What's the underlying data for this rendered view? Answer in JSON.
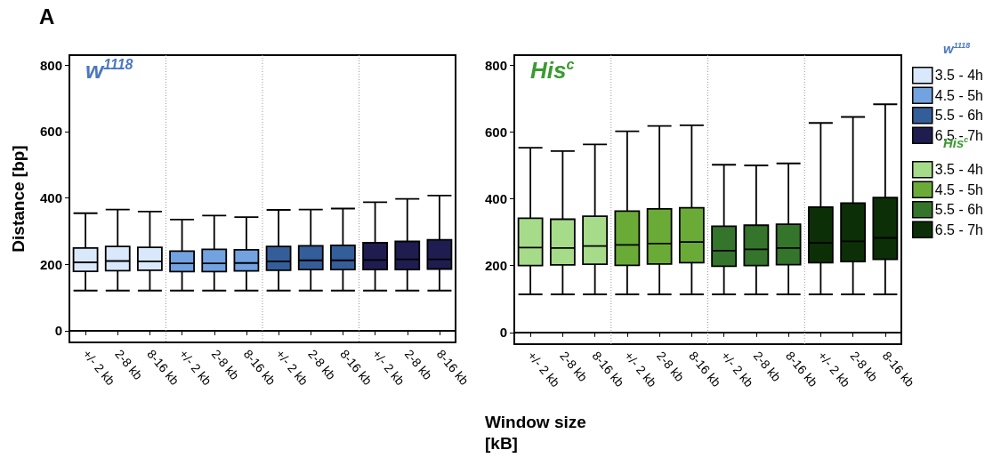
{
  "chart_data": [
    {
      "type": "box",
      "title": "w$^{1118}$",
      "legend_title": "w$^{1118}$",
      "ylabel": "Distance [bp]",
      "xlabel": "Window size\n[kB]",
      "annotations": [
        "A"
      ],
      "categories": [
        "+/- 2 kb",
        "2-8 kb",
        "8-16 kb",
        "+/- 2 kb",
        "2-8 kb",
        "8-16 kb",
        "+/- 2 kb",
        "2-8 kb",
        "8-16 kb",
        "+/- 2 kb",
        "2-8 kb",
        "8-16 kb"
      ],
      "ylim": [
        -35,
        830
      ],
      "yticks": [
        0,
        200,
        400,
        600,
        800
      ],
      "legend": "top right",
      "series": [
        {
          "name": "3.5 - 4h",
          "color": "#d9e8fb",
          "boxes": [
            {
              "low": 121,
              "q1": 179,
              "median": 206,
              "q3": 249,
              "high": 354
            },
            {
              "low": 121,
              "q1": 181,
              "median": 210,
              "q3": 254,
              "high": 365
            },
            {
              "low": 121,
              "q1": 182,
              "median": 209,
              "q3": 251,
              "high": 359
            },
            null,
            null,
            null,
            null,
            null,
            null,
            null,
            null,
            null
          ]
        },
        {
          "name": "4.5 - 5h",
          "color": "#72a2e0",
          "boxes": [
            null,
            null,
            null,
            {
              "low": 121,
              "q1": 178,
              "median": 203,
              "q3": 240,
              "high": 335
            },
            {
              "low": 121,
              "q1": 178,
              "median": 203,
              "q3": 245,
              "high": 347
            },
            {
              "low": 121,
              "q1": 180,
              "median": 204,
              "q3": 244,
              "high": 342
            },
            null,
            null,
            null,
            null,
            null,
            null
          ]
        },
        {
          "name": "5.5 - 6h",
          "color": "#345e99",
          "boxes": [
            null,
            null,
            null,
            null,
            null,
            null,
            {
              "low": 121,
              "q1": 182,
              "median": 209,
              "q3": 254,
              "high": 364
            },
            {
              "low": 121,
              "q1": 184,
              "median": 212,
              "q3": 256,
              "high": 365
            },
            {
              "low": 121,
              "q1": 184,
              "median": 212,
              "q3": 257,
              "high": 368
            },
            null,
            null,
            null
          ]
        },
        {
          "name": "6.5 - 7h",
          "color": "#1f1d4f",
          "boxes": [
            null,
            null,
            null,
            null,
            null,
            null,
            null,
            null,
            null,
            {
              "low": 121,
              "q1": 184,
              "median": 213,
              "q3": 265,
              "high": 387
            },
            {
              "low": 121,
              "q1": 184,
              "median": 215,
              "q3": 269,
              "high": 397
            },
            {
              "low": 121,
              "q1": 186,
              "median": 215,
              "q3": 274,
              "high": 407
            }
          ]
        }
      ]
    },
    {
      "type": "box",
      "title": "His$^{c}$",
      "legend_title": "His$^{c}$",
      "categories": [
        "+/- 2 kb",
        "2-8 kb",
        "8-16 kb",
        "+/- 2 kb",
        "2-8 kb",
        "8-16 kb",
        "+/- 2 kb",
        "2-8 kb",
        "8-16 kb",
        "+/- 2 kb",
        "2-8 kb",
        "8-16 kb"
      ],
      "ylim": [
        -35,
        830
      ],
      "yticks": [
        0,
        200,
        400,
        600,
        800
      ],
      "legend": "right",
      "series": [
        {
          "name": "3.5 - 4h",
          "color": "#a6db8a",
          "boxes": [
            {
              "low": 114,
              "q1": 200,
              "median": 254,
              "q3": 342,
              "high": 553
            },
            {
              "low": 114,
              "q1": 202,
              "median": 253,
              "q3": 339,
              "high": 543
            },
            {
              "low": 114,
              "q1": 204,
              "median": 259,
              "q3": 348,
              "high": 563
            },
            null,
            null,
            null,
            null,
            null,
            null,
            null,
            null,
            null
          ]
        },
        {
          "name": "4.5 - 5h",
          "color": "#6aab38",
          "boxes": [
            null,
            null,
            null,
            {
              "low": 114,
              "q1": 201,
              "median": 262,
              "q3": 363,
              "high": 602
            },
            {
              "low": 114,
              "q1": 205,
              "median": 266,
              "q3": 370,
              "high": 618
            },
            {
              "low": 114,
              "q1": 209,
              "median": 271,
              "q3": 373,
              "high": 620
            },
            null,
            null,
            null,
            null,
            null,
            null
          ]
        },
        {
          "name": "5.5 - 6h",
          "color": "#35742b",
          "boxes": [
            null,
            null,
            null,
            null,
            null,
            null,
            {
              "low": 114,
              "q1": 198,
              "median": 245,
              "q3": 318,
              "high": 502
            },
            {
              "low": 114,
              "q1": 200,
              "median": 249,
              "q3": 321,
              "high": 500
            },
            {
              "low": 114,
              "q1": 203,
              "median": 253,
              "q3": 324,
              "high": 506
            },
            null,
            null,
            null
          ]
        },
        {
          "name": "6.5 - 7h",
          "color": "#0c2f07",
          "boxes": [
            null,
            null,
            null,
            null,
            null,
            null,
            null,
            null,
            null,
            {
              "low": 114,
              "q1": 209,
              "median": 268,
              "q3": 375,
              "high": 627
            },
            {
              "low": 114,
              "q1": 212,
              "median": 273,
              "q3": 387,
              "high": 645
            },
            {
              "low": 114,
              "q1": 219,
              "median": 283,
              "q3": 404,
              "high": 683
            }
          ]
        }
      ]
    }
  ]
}
